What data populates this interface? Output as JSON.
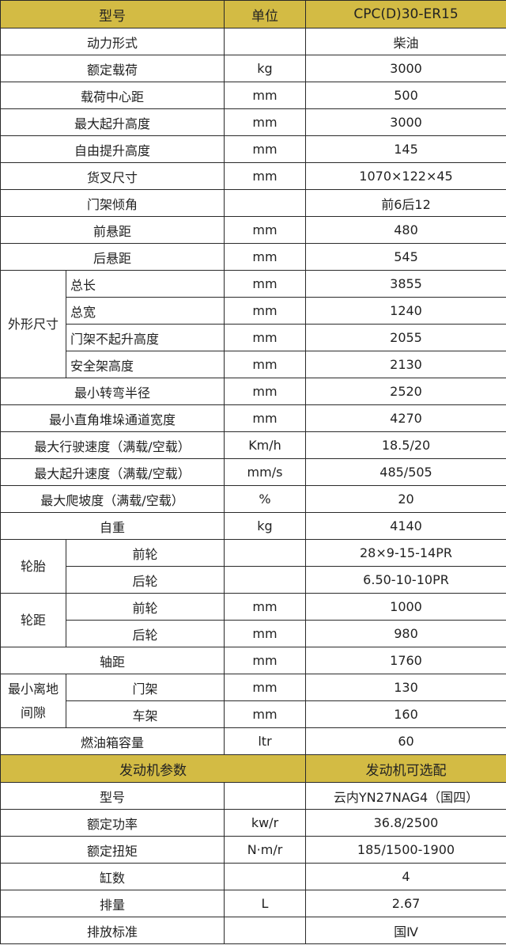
{
  "header": {
    "col1": "型号",
    "col2": "单位",
    "col3": "CPC(D)30-ER15"
  },
  "header_color": "#d3bb44",
  "spec_rows": [
    {
      "label": "动力形式",
      "unit": "",
      "value": "柴油"
    },
    {
      "label": "额定载荷",
      "unit": "kg",
      "value": "3000"
    },
    {
      "label": "载荷中心距",
      "unit": "mm",
      "value": "500"
    },
    {
      "label": "最大起升高度",
      "unit": "mm",
      "value": "3000"
    },
    {
      "label": "自由提升高度",
      "unit": "mm",
      "value": "145"
    },
    {
      "label": "货叉尺寸",
      "unit": "mm",
      "value": "1070×122×45"
    },
    {
      "label": "门架倾角",
      "unit": "",
      "value": "前6后12"
    },
    {
      "label": "前悬距",
      "unit": "mm",
      "value": "480"
    },
    {
      "label": "后悬距",
      "unit": "mm",
      "value": "545"
    },
    {
      "group": "外形尺寸",
      "label": "总长",
      "unit": "mm",
      "value": "3855"
    },
    {
      "group": "外形尺寸",
      "label": "总宽",
      "unit": "mm",
      "value": "1240"
    },
    {
      "group": "外形尺寸",
      "label": "门架不起升高度",
      "unit": "mm",
      "value": "2055"
    },
    {
      "group": "外形尺寸",
      "label": "安全架高度",
      "unit": "mm",
      "value": "2130"
    },
    {
      "label": "最小转弯半径",
      "unit": "mm",
      "value": "2520"
    },
    {
      "label": "最小直角堆垛通道宽度",
      "unit": "mm",
      "value": "4270"
    },
    {
      "label": "最大行驶速度（满载/空载）",
      "unit": "Km/h",
      "value": "18.5/20"
    },
    {
      "label": "最大起升速度（满载/空载）",
      "unit": "mm/s",
      "value": "485/505"
    },
    {
      "label": "最大爬坡度（满载/空载）",
      "unit": "%",
      "value": "20"
    },
    {
      "label": "自重",
      "unit": "kg",
      "value": "4140"
    },
    {
      "group": "轮胎",
      "label": "前轮",
      "unit": "",
      "value": "28×9-15-14PR"
    },
    {
      "group": "轮胎",
      "label": "后轮",
      "unit": "",
      "value": "6.50-10-10PR"
    },
    {
      "group": "轮距",
      "label": "前轮",
      "unit": "mm",
      "value": "1000"
    },
    {
      "group": "轮距",
      "label": "后轮",
      "unit": "mm",
      "value": "980"
    },
    {
      "label": "轴距",
      "unit": "mm",
      "value": "1760"
    },
    {
      "group": "最小离地间隙",
      "label": "门架",
      "unit": "mm",
      "value": "130"
    },
    {
      "group": "最小离地间隙",
      "label": "车架",
      "unit": "mm",
      "value": "160"
    },
    {
      "label": "燃油箱容量",
      "unit": "ltr",
      "value": "60"
    }
  ],
  "engine_header": {
    "col1": "发动机参数",
    "col3": "发动机可选配"
  },
  "engine_rows": [
    {
      "label": "型号",
      "unit": "",
      "value": "云内YN27NAG4（国四）"
    },
    {
      "label": "额定功率",
      "unit": "kw/r",
      "value": "36.8/2500"
    },
    {
      "label": "额定扭矩",
      "unit": "N·m/r",
      "value": "185/1500-1900"
    },
    {
      "label": "缸数",
      "unit": "",
      "value": "4"
    },
    {
      "label": "排量",
      "unit": "L",
      "value": "2.67"
    },
    {
      "label": "排放标准",
      "unit": "",
      "value": "国Ⅳ"
    }
  ]
}
